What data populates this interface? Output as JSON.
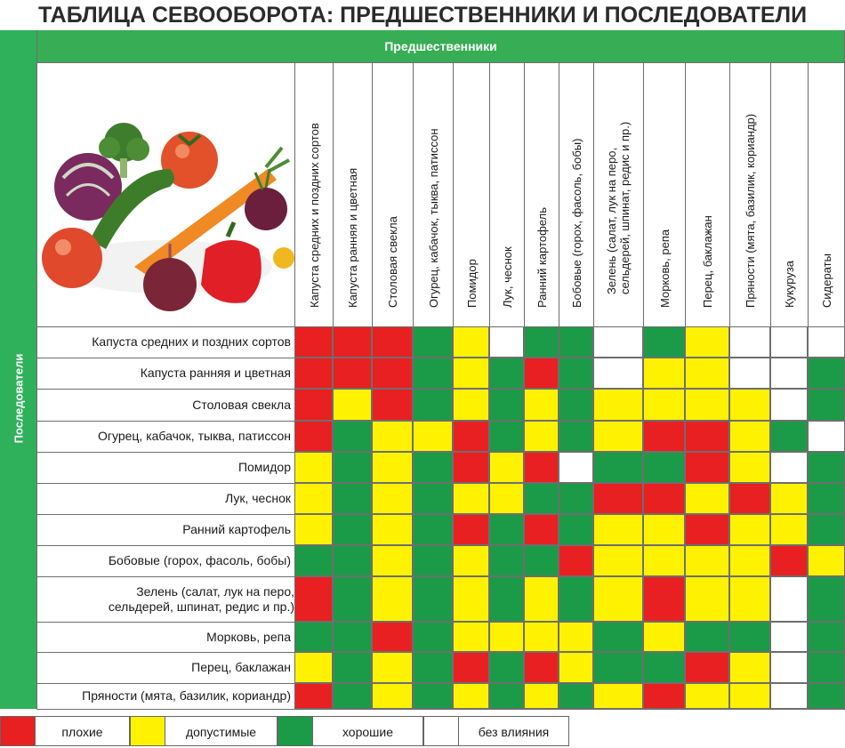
{
  "title": "ТАБЛИЦА СЕВООБОРОТА: ПРЕДШЕСТВЕННИКИ И ПОСЛЕДОВАТЕЛИ",
  "side_label": "Последователи",
  "top_label": "Предшественники",
  "columns": [
    "Капуста средних и поздних сортов",
    "Капуста ранняя и цветная",
    "Столовая свекла",
    "Огурец, кабачок, тыква, патиссон",
    "Помидор",
    "Лук, чеснок",
    "Ранний картофель",
    "Бобовые (горох, фасоль, бобы)",
    "Зелень (салат, лук на перо, сельдерей, шпинат, редис и пр.)",
    "Морковь, репа",
    "Перец, баклажан",
    "Пряности (мята, базилик, кориандр)",
    "Кукуруза",
    "Сидераты"
  ],
  "rows": [
    {
      "label": "Капуста средних и поздних сортов",
      "cells": [
        "r",
        "r",
        "r",
        "g",
        "y",
        "w",
        "g",
        "g",
        "w",
        "g",
        "y",
        "w",
        "w",
        "w"
      ]
    },
    {
      "label": "Капуста ранняя и цветная",
      "cells": [
        "r",
        "r",
        "r",
        "g",
        "y",
        "g",
        "r",
        "g",
        "w",
        "y",
        "y",
        "w",
        "w",
        "g"
      ]
    },
    {
      "label": "Столовая свекла",
      "cells": [
        "r",
        "y",
        "r",
        "g",
        "y",
        "g",
        "y",
        "g",
        "y",
        "y",
        "y",
        "y",
        "w",
        "g"
      ]
    },
    {
      "label": "Огурец, кабачок, тыква, патиссон",
      "cells": [
        "r",
        "g",
        "y",
        "y",
        "r",
        "g",
        "y",
        "g",
        "y",
        "r",
        "r",
        "y",
        "g",
        "w"
      ]
    },
    {
      "label": "Помидор",
      "cells": [
        "y",
        "g",
        "y",
        "g",
        "r",
        "y",
        "r",
        "w",
        "g",
        "g",
        "r",
        "y",
        "w",
        "g"
      ]
    },
    {
      "label": "Лук, чеснок",
      "cells": [
        "y",
        "g",
        "y",
        "g",
        "y",
        "y",
        "g",
        "g",
        "r",
        "r",
        "y",
        "r",
        "y",
        "g"
      ]
    },
    {
      "label": "Ранний картофель",
      "cells": [
        "y",
        "g",
        "y",
        "g",
        "r",
        "g",
        "r",
        "g",
        "y",
        "y",
        "r",
        "y",
        "y",
        "g"
      ]
    },
    {
      "label": "Бобовые (горох, фасоль, бобы)",
      "cells": [
        "g",
        "g",
        "y",
        "g",
        "y",
        "g",
        "g",
        "r",
        "y",
        "y",
        "y",
        "y",
        "r",
        "y"
      ]
    },
    {
      "label": "Зелень (салат, лук на перо, сельдерей, шпинат, редис и пр.)",
      "cells": [
        "r",
        "g",
        "y",
        "g",
        "y",
        "g",
        "y",
        "g",
        "y",
        "r",
        "y",
        "y",
        "w",
        "g"
      ]
    },
    {
      "label": "Морковь, репа",
      "cells": [
        "g",
        "g",
        "r",
        "g",
        "y",
        "y",
        "y",
        "y",
        "g",
        "y",
        "g",
        "g",
        "w",
        "g"
      ]
    },
    {
      "label": "Перец, баклажан",
      "cells": [
        "y",
        "g",
        "y",
        "g",
        "r",
        "g",
        "r",
        "y",
        "g",
        "g",
        "r",
        "y",
        "w",
        "g"
      ]
    },
    {
      "label": "Пряности (мята, базилик, кориандр)",
      "cells": [
        "r",
        "g",
        "y",
        "g",
        "y",
        "g",
        "y",
        "g",
        "y",
        "r",
        "y",
        "y",
        "w",
        "g"
      ]
    }
  ],
  "legend": [
    {
      "key": "r",
      "label": "плохие"
    },
    {
      "key": "y",
      "label": "допустимые"
    },
    {
      "key": "g",
      "label": "хорошие"
    },
    {
      "key": "w",
      "label": "без влияния"
    }
  ],
  "colors": {
    "r": "#e82021",
    "y": "#fff200",
    "g": "#1b9b47",
    "w": "#ffffff",
    "brand_green": "#37ad55"
  }
}
